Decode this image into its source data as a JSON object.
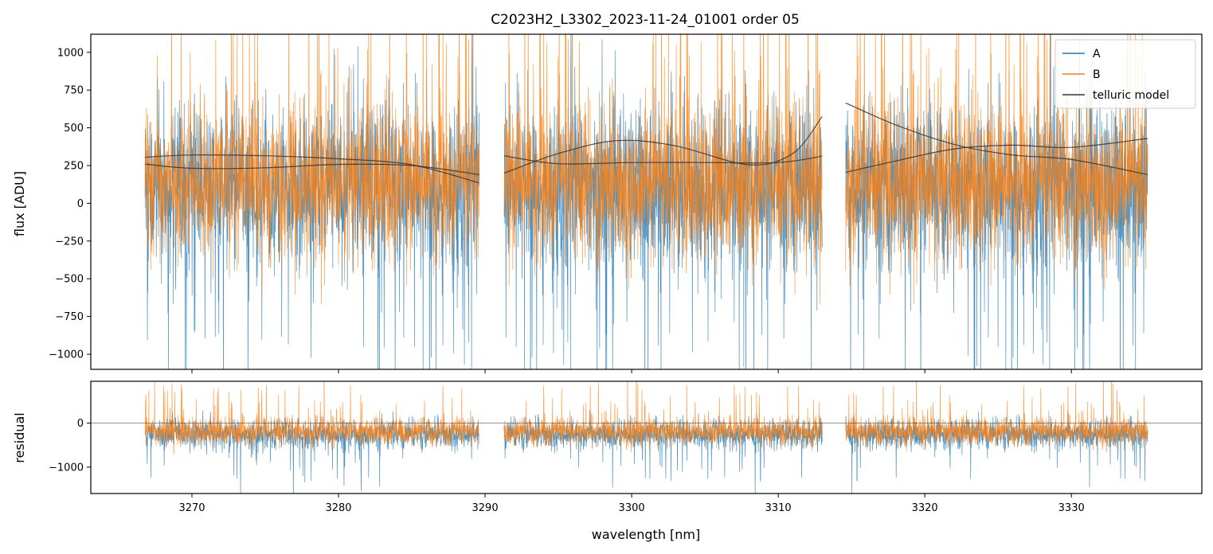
{
  "chart_data": [
    {
      "type": "line",
      "title": "C2023H2_L3302_2023-11-24_01001  order 05",
      "xlabel": "",
      "ylabel": "flux [ADU]",
      "xlim": [
        3263.1,
        3338.9
      ],
      "ylim": [
        -1100,
        1120
      ],
      "xticks": [
        3270,
        3280,
        3290,
        3300,
        3310,
        3320,
        3330
      ],
      "yticks": [
        -1000,
        -750,
        -500,
        -250,
        0,
        250,
        500,
        750,
        1000
      ],
      "ytick_labels": [
        "−1000",
        "−750",
        "−500",
        "−250",
        "0",
        "250",
        "500",
        "750",
        "1000"
      ],
      "segments": [
        {
          "x_start": 3266.8,
          "x_end": 3289.6
        },
        {
          "x_start": 3291.3,
          "x_end": 3313.0
        },
        {
          "x_start": 3314.6,
          "x_end": 3335.2
        }
      ],
      "series": [
        {
          "name": "A",
          "color": "#1f77b4",
          "noise_std": 270,
          "spikes": "strong negative dips to -1100"
        },
        {
          "name": "B",
          "color": "#ff7f0e",
          "noise_std": 260,
          "spikes": "strong positive spikes to 1100"
        }
      ],
      "telluric_model": {
        "name": "telluric model",
        "color": "#333333",
        "curves": [
          {
            "x": [
              3266.8,
              3270,
              3275,
              3280,
              3285,
              3289.6
            ],
            "y": [
              305,
              320,
              315,
              295,
              255,
              135
            ]
          },
          {
            "x": [
              3266.8,
              3270,
              3275,
              3280,
              3285,
              3289.6
            ],
            "y": [
              260,
              232,
              235,
              258,
              250,
              190
            ]
          },
          {
            "x": [
              3291.3,
              3295,
              3299,
              3303,
              3308,
              3311,
              3313.0
            ],
            "y": [
              200,
              330,
              415,
              380,
              255,
              330,
              575
            ]
          },
          {
            "x": [
              3291.3,
              3295,
              3300,
              3305,
              3310,
              3313.0
            ],
            "y": [
              315,
              262,
              270,
              270,
              270,
              312
            ]
          },
          {
            "x": [
              3314.6,
              3318,
              3322,
              3326,
              3330,
              3335.2
            ],
            "y": [
              665,
              520,
              390,
              320,
              290,
              190
            ]
          },
          {
            "x": [
              3314.6,
              3318,
              3322,
              3326,
              3330,
              3335.2
            ],
            "y": [
              205,
              280,
              360,
              385,
              370,
              430
            ]
          }
        ]
      },
      "legend": {
        "position": "top-right",
        "entries": [
          "A",
          "B",
          "telluric model"
        ]
      }
    },
    {
      "type": "line",
      "title": "",
      "xlabel": "wavelength [nm]",
      "ylabel": "residual",
      "xlim": [
        3263.1,
        3338.9
      ],
      "ylim": [
        -1600,
        950
      ],
      "xticks": [
        3270,
        3280,
        3290,
        3300,
        3310,
        3320,
        3330
      ],
      "xtick_labels": [
        "3270",
        "3280",
        "3290",
        "3300",
        "3310",
        "3320",
        "3330"
      ],
      "yticks": [
        -1000,
        0
      ],
      "ytick_labels": [
        "−1000",
        "0"
      ],
      "zero_line": true,
      "series": [
        {
          "name": "A",
          "color": "#1f77b4",
          "center": -250,
          "noise_std": 300
        },
        {
          "name": "B",
          "color": "#ff7f0e",
          "center": -200,
          "noise_std": 280
        }
      ]
    }
  ]
}
